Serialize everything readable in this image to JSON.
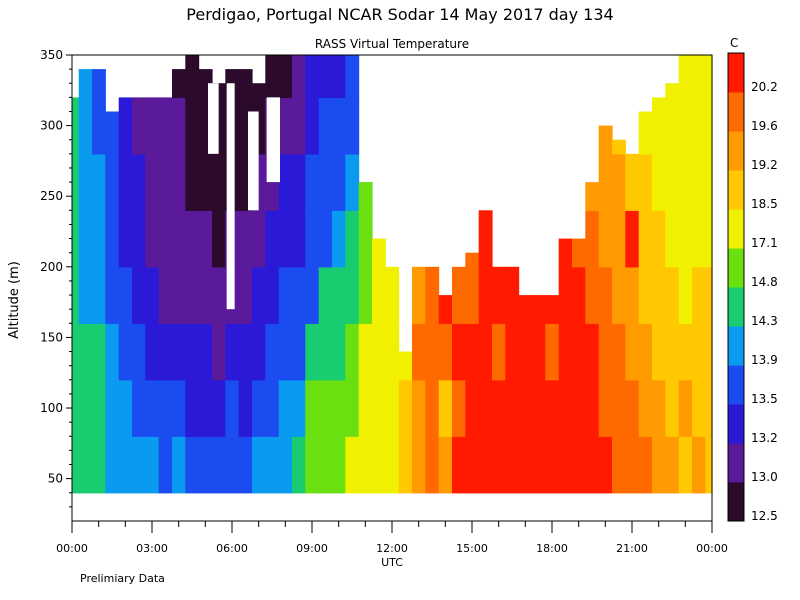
{
  "chart_data": {
    "type": "heatmap",
    "title": "Perdigao, Portugal  NCAR Sodar  14 May 2017  day 134",
    "subtitle": "RASS Virtual Temperature",
    "xlabel": "UTC",
    "ylabel": "Altitude (m)",
    "footnote": "Prelimiary Data",
    "x_ticks": [
      "00:00",
      "03:00",
      "06:00",
      "09:00",
      "12:00",
      "15:00",
      "18:00",
      "21:00",
      "00:00"
    ],
    "x_range_hours": [
      0,
      24
    ],
    "y_ticks": [
      50,
      100,
      150,
      200,
      250,
      300,
      350
    ],
    "y_range_m": [
      20,
      350
    ],
    "colorbar": {
      "unit": "C",
      "labels": [
        "12.5",
        "13.0",
        "13.2",
        "13.5",
        "13.9",
        "14.3",
        "14.8",
        "17.1",
        "18.5",
        "19.2",
        "19.6",
        "20.2"
      ],
      "colors": [
        "#2b0a2b",
        "#5a1a9a",
        "#2a1ad8",
        "#1a4cf0",
        "#0a9af0",
        "#1acc70",
        "#6ae010",
        "#f0f000",
        "#ffc800",
        "#ff9a00",
        "#ff6a00",
        "#ff1a00"
      ]
    },
    "tiers_by_hour": [
      {
        "h": 0.0,
        "top": 320,
        "b": [
          5,
          5,
          5,
          5,
          5,
          5,
          5,
          4,
          4
        ]
      },
      {
        "h": 0.5,
        "top": 340,
        "b": [
          5,
          5,
          5,
          4,
          4,
          4,
          4,
          4,
          4
        ]
      },
      {
        "h": 1.0,
        "top": 340,
        "b": [
          5,
          5,
          5,
          4,
          4,
          4,
          3,
          3,
          3
        ]
      },
      {
        "h": 1.5,
        "top": 310,
        "b": [
          4,
          4,
          4,
          3,
          3,
          3,
          3,
          3,
          3
        ]
      },
      {
        "h": 2.0,
        "top": 320,
        "b": [
          4,
          4,
          3,
          3,
          2,
          2,
          2,
          2,
          2
        ]
      },
      {
        "h": 2.5,
        "top": 320,
        "b": [
          4,
          3,
          3,
          2,
          2,
          2,
          1,
          1,
          1
        ]
      },
      {
        "h": 3.0,
        "top": 320,
        "b": [
          4,
          3,
          2,
          2,
          1,
          1,
          1,
          1,
          1
        ]
      },
      {
        "h": 3.5,
        "top": 320,
        "b": [
          3,
          3,
          2,
          1,
          1,
          1,
          1,
          1,
          0
        ]
      },
      {
        "h": 4.0,
        "top": 340,
        "b": [
          4,
          3,
          2,
          1,
          1,
          1,
          1,
          0,
          0
        ]
      },
      {
        "h": 4.5,
        "top": 350,
        "b": [
          3,
          2,
          2,
          1,
          1,
          0,
          0,
          0,
          0
        ]
      },
      {
        "h": 5.0,
        "top": 340,
        "b": [
          3,
          2,
          2,
          1,
          1,
          0,
          0,
          0,
          0
        ]
      },
      {
        "h": 5.5,
        "top": 330,
        "b": [
          3,
          2,
          1,
          1,
          0,
          0,
          0,
          0,
          0
        ]
      },
      {
        "h": 6.0,
        "top": 340,
        "b": [
          3,
          3,
          2,
          1,
          1,
          0,
          0,
          0,
          0
        ]
      },
      {
        "h": 6.5,
        "top": 340,
        "b": [
          3,
          2,
          2,
          1,
          1,
          0,
          0,
          0,
          0
        ]
      },
      {
        "h": 7.0,
        "top": 330,
        "b": [
          4,
          3,
          2,
          2,
          1,
          1,
          0,
          0,
          0
        ]
      },
      {
        "h": 7.5,
        "top": 350,
        "b": [
          4,
          3,
          3,
          2,
          2,
          1,
          1,
          0,
          0
        ]
      },
      {
        "h": 8.0,
        "top": 350,
        "b": [
          4,
          4,
          3,
          3,
          2,
          2,
          1,
          0,
          0
        ]
      },
      {
        "h": 8.5,
        "top": 350,
        "b": [
          5,
          4,
          3,
          3,
          2,
          2,
          1,
          1,
          1
        ]
      },
      {
        "h": 9.0,
        "top": 350,
        "b": [
          6,
          6,
          5,
          3,
          3,
          3,
          2,
          2,
          2
        ]
      },
      {
        "h": 9.5,
        "top": 350,
        "b": [
          6,
          6,
          5,
          5,
          3,
          3,
          3,
          2,
          2
        ]
      },
      {
        "h": 10.0,
        "top": 350,
        "b": [
          6,
          6,
          5,
          5,
          4,
          3,
          3,
          2,
          2
        ]
      },
      {
        "h": 10.5,
        "top": 350,
        "b": [
          7,
          6,
          6,
          5,
          5,
          4,
          3,
          3,
          3
        ]
      },
      {
        "h": 11.0,
        "top": 260,
        "b": [
          7,
          7,
          7,
          6,
          6,
          6
        ]
      },
      {
        "h": 11.5,
        "top": 220,
        "b": [
          7,
          7,
          7,
          7,
          7
        ]
      },
      {
        "h": 12.0,
        "top": 200,
        "b": [
          7,
          7,
          7,
          7,
          7
        ]
      },
      {
        "h": 12.5,
        "top": 140,
        "b": [
          8,
          8,
          7,
          7
        ]
      },
      {
        "h": 13.0,
        "top": 200,
        "b": [
          9,
          9,
          10,
          9,
          8
        ]
      },
      {
        "h": 13.5,
        "top": 200,
        "b": [
          10,
          10,
          10,
          10,
          9
        ]
      },
      {
        "h": 14.0,
        "top": 180,
        "b": [
          9,
          8,
          10,
          11,
          9
        ]
      },
      {
        "h": 14.5,
        "top": 200,
        "b": [
          11,
          10,
          11,
          10,
          9
        ]
      },
      {
        "h": 15.0,
        "top": 210,
        "b": [
          11,
          11,
          11,
          10,
          10
        ]
      },
      {
        "h": 15.5,
        "top": 240,
        "b": [
          11,
          11,
          11,
          11,
          11,
          10
        ]
      },
      {
        "h": 16.0,
        "top": 200,
        "b": [
          11,
          11,
          10,
          11,
          10
        ]
      },
      {
        "h": 16.5,
        "top": 200,
        "b": [
          11,
          11,
          11,
          11,
          10
        ]
      },
      {
        "h": 17.0,
        "top": 180,
        "b": [
          11,
          11,
          11,
          11,
          10
        ]
      },
      {
        "h": 17.5,
        "top": 180,
        "b": [
          11,
          11,
          11,
          11,
          11
        ]
      },
      {
        "h": 18.0,
        "top": 180,
        "b": [
          11,
          11,
          10,
          11,
          11
        ]
      },
      {
        "h": 18.5,
        "top": 220,
        "b": [
          11,
          11,
          11,
          11,
          11,
          10
        ]
      },
      {
        "h": 19.0,
        "top": 220,
        "b": [
          11,
          11,
          11,
          11,
          10,
          10
        ]
      },
      {
        "h": 19.5,
        "top": 260,
        "b": [
          11,
          11,
          11,
          10,
          10,
          9,
          9
        ]
      },
      {
        "h": 20.0,
        "top": 300,
        "b": [
          11,
          10,
          10,
          10,
          9,
          9,
          9,
          8
        ]
      },
      {
        "h": 20.5,
        "top": 290,
        "b": [
          10,
          10,
          10,
          9,
          9,
          9,
          8,
          8
        ]
      },
      {
        "h": 21.0,
        "top": 280,
        "b": [
          10,
          10,
          9,
          9,
          11,
          8,
          8,
          8
        ]
      },
      {
        "h": 21.5,
        "top": 310,
        "b": [
          10,
          9,
          9,
          8,
          8,
          8,
          7,
          7,
          7
        ]
      },
      {
        "h": 22.0,
        "top": 320,
        "b": [
          9,
          9,
          8,
          8,
          8,
          7,
          7,
          7,
          7
        ]
      },
      {
        "h": 22.5,
        "top": 330,
        "b": [
          9,
          8,
          8,
          8,
          7,
          7,
          7,
          7,
          7
        ]
      },
      {
        "h": 23.0,
        "top": 350,
        "b": [
          8,
          9,
          8,
          7,
          7,
          7,
          7,
          7,
          7
        ]
      },
      {
        "h": 23.5,
        "top": 350,
        "b": [
          9,
          8,
          8,
          8,
          7,
          7,
          7,
          7,
          7
        ]
      },
      {
        "h": 24.0,
        "top": 350,
        "b": [
          8,
          8,
          8,
          8,
          7,
          7,
          7,
          7,
          7
        ]
      }
    ],
    "gaps": [
      {
        "h0": 5.8,
        "h1": 6.1,
        "y0": 170,
        "y1": 330
      },
      {
        "h0": 6.6,
        "h1": 7.0,
        "y0": 240,
        "y1": 310
      },
      {
        "h0": 7.3,
        "h1": 7.8,
        "y0": 260,
        "y1": 320
      },
      {
        "h0": 5.1,
        "h1": 5.5,
        "y0": 280,
        "y1": 330
      }
    ]
  }
}
